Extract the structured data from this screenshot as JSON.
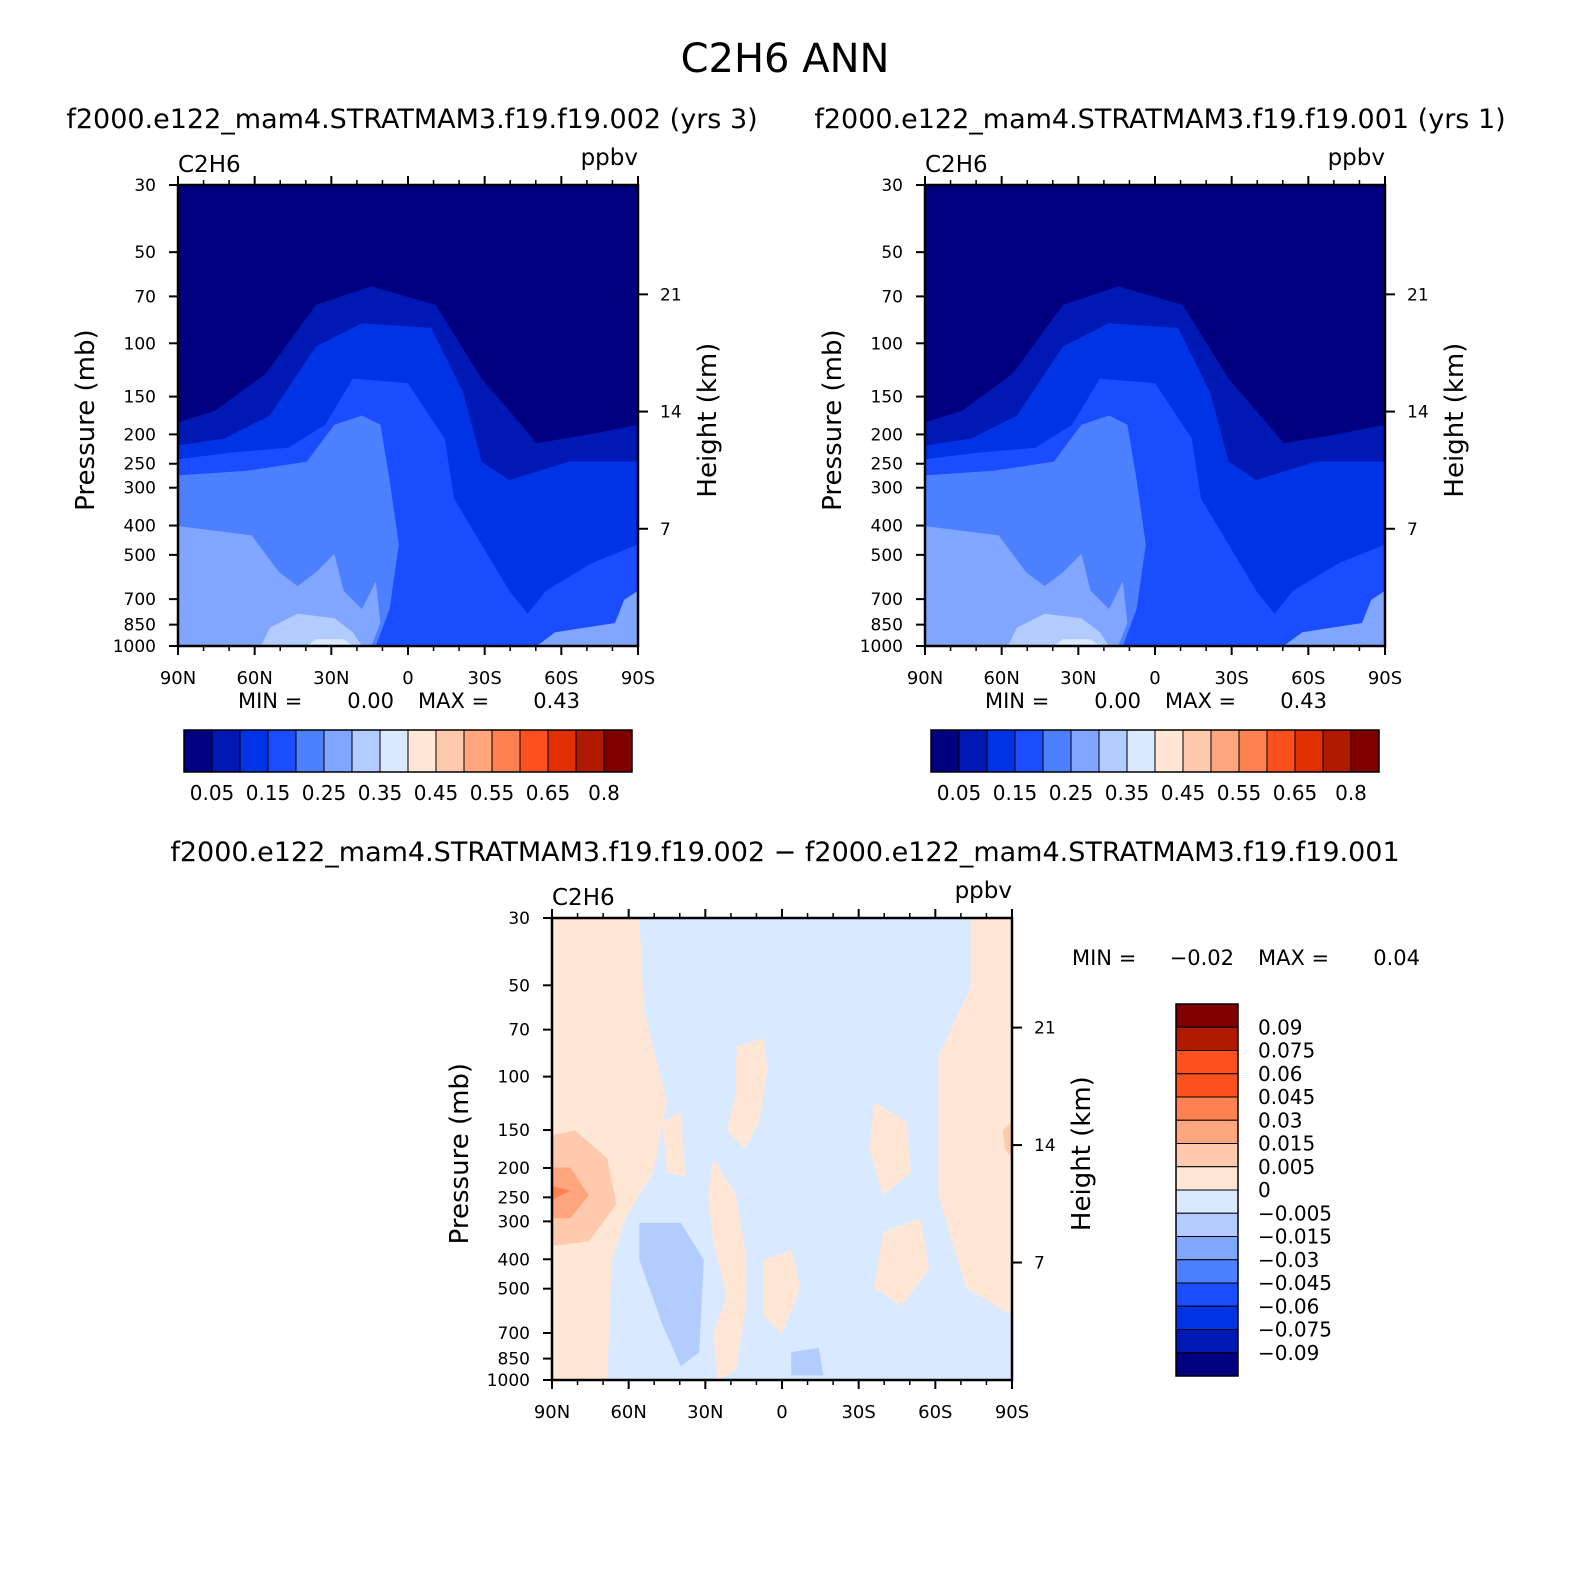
{
  "figure": {
    "title": "C2H6 ANN",
    "panel1_title": "f2000.e122_mam4.STRATMAM3.f19.f19.002 (yrs 3)",
    "panel2_title": "f2000.e122_mam4.STRATMAM3.f19.f19.001 (yrs 1)",
    "diff_title": "f2000.e122_mam4.STRATMAM3.f19.f19.002 − f2000.e122_mam4.STRATMAM3.f19.f19.001"
  },
  "chart_data": [
    {
      "type": "heatmap",
      "panel": "panel1",
      "variable": "C2H6",
      "units": "ppbv",
      "ylabel": "Pressure (mb)",
      "ylabel2": "Height (km)",
      "xticks": [
        "90N",
        "60N",
        "30N",
        "0",
        "30S",
        "60S",
        "90S"
      ],
      "pressure_ticks": [
        30,
        50,
        70,
        100,
        150,
        200,
        250,
        300,
        400,
        500,
        700,
        850,
        1000
      ],
      "height_ticks": [
        7,
        14,
        21
      ],
      "min_label": "MIN =",
      "min_value": "0.00",
      "max_label": "MAX =",
      "max_value": "0.43",
      "colorbar_labels": [
        "0.05",
        "0.15",
        "0.25",
        "0.35",
        "0.45",
        "0.55",
        "0.65",
        "0.8"
      ]
    },
    {
      "type": "heatmap",
      "panel": "panel2",
      "variable": "C2H6",
      "units": "ppbv",
      "ylabel": "Pressure (mb)",
      "ylabel2": "Height (km)",
      "xticks": [
        "90N",
        "60N",
        "30N",
        "0",
        "30S",
        "60S",
        "90S"
      ],
      "pressure_ticks": [
        30,
        50,
        70,
        100,
        150,
        200,
        250,
        300,
        400,
        500,
        700,
        850,
        1000
      ],
      "height_ticks": [
        7,
        14,
        21
      ],
      "min_label": "MIN =",
      "min_value": "0.00",
      "max_label": "MAX =",
      "max_value": "0.43",
      "colorbar_labels": [
        "0.05",
        "0.15",
        "0.25",
        "0.35",
        "0.45",
        "0.55",
        "0.65",
        "0.8"
      ]
    },
    {
      "type": "heatmap",
      "panel": "difference",
      "variable": "C2H6",
      "units": "ppbv",
      "ylabel": "Pressure (mb)",
      "ylabel2": "Height (km)",
      "xticks": [
        "90N",
        "60N",
        "30N",
        "0",
        "30S",
        "60S",
        "90S"
      ],
      "pressure_ticks": [
        30,
        50,
        70,
        100,
        150,
        200,
        250,
        300,
        400,
        500,
        700,
        850,
        1000
      ],
      "height_ticks": [
        7,
        14,
        21
      ],
      "min_label": "MIN =",
      "min_value": "−0.02",
      "max_label": "MAX =",
      "max_value": "0.04",
      "colorbar_labels": [
        "0.09",
        "0.075",
        "0.06",
        "0.045",
        "0.03",
        "0.015",
        "0.005",
        "0",
        "−0.005",
        "−0.015",
        "−0.03",
        "−0.045",
        "−0.06",
        "−0.075",
        "−0.09"
      ]
    }
  ],
  "colors": {
    "abs_scale": [
      "#000080",
      "#0019b4",
      "#0033e6",
      "#1a4dff",
      "#4d80ff",
      "#80a6ff",
      "#b3ccff",
      "#d9e9ff",
      "#ffe6d5",
      "#ffc9ae",
      "#ffa67f",
      "#ff8050",
      "#ff5020",
      "#e03000",
      "#b01a00",
      "#800000"
    ],
    "diff_scale": [
      "#000080",
      "#0019b4",
      "#0033e6",
      "#1a4dff",
      "#4d80ff",
      "#80a6ff",
      "#b3ccff",
      "#d9e9ff",
      "#ffe6d5",
      "#ffc9ae",
      "#ffa67f",
      "#ff8050",
      "#ff5020",
      "#b01a00",
      "#800000"
    ]
  }
}
